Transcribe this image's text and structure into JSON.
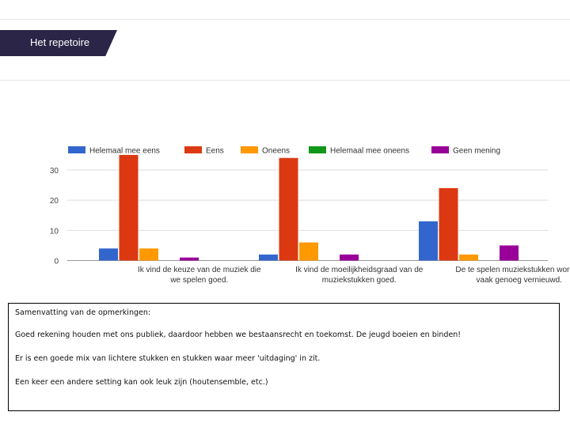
{
  "header": {
    "title": "Het repetoire"
  },
  "chart_data": {
    "type": "bar",
    "categories": [
      [
        "Ik vind de keuze van de muziek die",
        "we spelen goed."
      ],
      [
        "Ik vind de moeilijkheidsgraad van de",
        "muziekstukken goed."
      ],
      [
        "De te spelen muziekstukken worden",
        "vaak genoeg vernieuwd."
      ]
    ],
    "series": [
      {
        "name": "Helemaal mee eens",
        "color": "#3366cc",
        "values": [
          4,
          2,
          13
        ]
      },
      {
        "name": "Eens",
        "color": "#dc3912",
        "values": [
          35,
          34,
          24
        ]
      },
      {
        "name": "Oneens",
        "color": "#ff9900",
        "values": [
          4,
          6,
          2
        ]
      },
      {
        "name": "Helemaal mee oneens",
        "color": "#109618",
        "values": [
          0,
          0,
          0
        ]
      },
      {
        "name": "Geen mening",
        "color": "#990099",
        "values": [
          1,
          2,
          5
        ]
      }
    ],
    "yticks": [
      0,
      10,
      20,
      30
    ],
    "ylim": [
      0,
      38
    ],
    "grid": true,
    "legend": "top"
  },
  "summary": {
    "title": "Samenvatting van de opmerkingen:",
    "lines": [
      "Goed rekening houden met ons publiek, daardoor hebben we bestaansrecht en toekomst. De jeugd boeien en binden!",
      "Er is een goede mix van lichtere stukken en stukken waar meer 'uitdaging' in zit.",
      "Een keer een andere setting kan ook leuk zijn (houtensemble, etc.)"
    ]
  }
}
